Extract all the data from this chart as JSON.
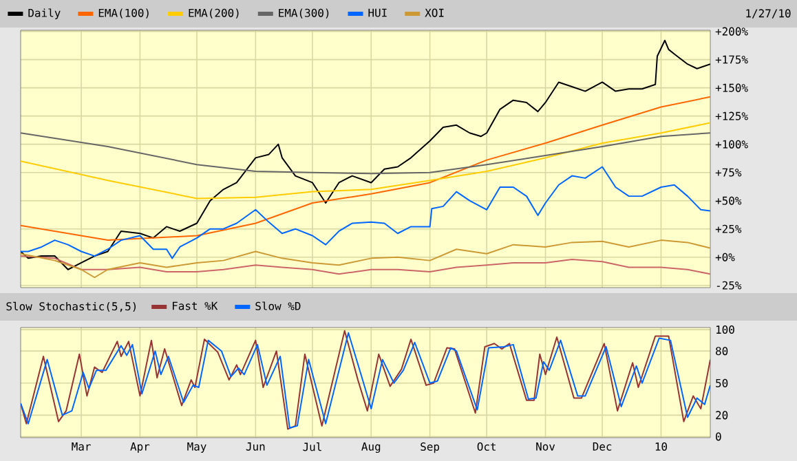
{
  "chart_data": [
    {
      "type": "line",
      "annotations": [
        "1/27/10"
      ],
      "legend": "top",
      "grid": true,
      "tick_labels": "y",
      "xlim": [
        "2009-01-28",
        "2010-01-27"
      ],
      "xticks": [
        {
          "value": "2009-03-01",
          "label": null
        },
        {
          "value": "2009-04-01",
          "label": null
        },
        {
          "value": "2009-05-01",
          "label": null
        },
        {
          "value": "2009-06-01",
          "label": null
        },
        {
          "value": "2009-07-01",
          "label": null
        },
        {
          "value": "2009-08-01",
          "label": null
        },
        {
          "value": "2009-09-01",
          "label": null
        },
        {
          "value": "2009-10-01",
          "label": null
        },
        {
          "value": "2009-11-01",
          "label": null
        },
        {
          "value": "2009-12-01",
          "label": null
        },
        {
          "value": "2010-01-01",
          "label": null
        }
      ],
      "ylim": [
        -27,
        201
      ],
      "yticks": [
        {
          "value": -25,
          "label": "-25%"
        },
        {
          "value": 0,
          "label": "+0%"
        },
        {
          "value": 25,
          "label": "+25%"
        },
        {
          "value": 50,
          "label": "+50%"
        },
        {
          "value": 75,
          "label": "+75%"
        },
        {
          "value": 100,
          "label": "+100%"
        },
        {
          "value": 125,
          "label": "+125%"
        },
        {
          "value": 150,
          "label": "+150%"
        },
        {
          "value": 175,
          "label": "+175%"
        },
        {
          "value": 200,
          "label": "+200%"
        }
      ],
      "series": [
        {
          "name": "Daily",
          "color": "#000000",
          "x": [
            "2009-01-28",
            "2009-02-01",
            "2009-02-08",
            "2009-02-15",
            "2009-02-22",
            "2009-03-01",
            "2009-03-08",
            "2009-03-15",
            "2009-03-22",
            "2009-04-01",
            "2009-04-08",
            "2009-04-15",
            "2009-04-22",
            "2009-05-01",
            "2009-05-08",
            "2009-05-15",
            "2009-05-22",
            "2009-06-01",
            "2009-06-08",
            "2009-06-13",
            "2009-06-15",
            "2009-06-22",
            "2009-07-01",
            "2009-07-08",
            "2009-07-15",
            "2009-07-22",
            "2009-08-01",
            "2009-08-08",
            "2009-08-15",
            "2009-08-22",
            "2009-09-01",
            "2009-09-08",
            "2009-09-15",
            "2009-09-22",
            "2009-09-28",
            "2009-10-01",
            "2009-10-08",
            "2009-10-15",
            "2009-10-22",
            "2009-10-28",
            "2009-11-01",
            "2009-11-08",
            "2009-11-15",
            "2009-11-22",
            "2009-12-01",
            "2009-12-08",
            "2009-12-15",
            "2009-12-22",
            "2009-12-29",
            "2009-12-30",
            "2010-01-03",
            "2010-01-05",
            "2010-01-08",
            "2010-01-15",
            "2010-01-20",
            "2010-01-27"
          ],
          "values": [
            5,
            -1,
            1,
            1,
            -11,
            -5,
            1,
            5,
            23,
            21,
            17,
            27,
            23,
            30,
            50,
            60,
            66,
            88,
            91,
            100,
            88,
            72,
            66,
            48,
            66,
            72,
            66,
            78,
            80,
            88,
            103,
            115,
            117,
            110,
            107,
            110,
            131,
            139,
            137,
            129,
            137,
            155,
            151,
            147,
            155,
            147,
            149,
            149,
            153,
            178,
            192,
            184,
            180,
            171,
            167,
            171
          ]
        },
        {
          "name": "EMA(100)",
          "color": "#ff6600",
          "x": [
            "2009-01-28",
            "2009-03-15",
            "2009-05-01",
            "2009-06-01",
            "2009-07-01",
            "2009-08-01",
            "2009-09-01",
            "2009-10-01",
            "2009-11-01",
            "2009-12-01",
            "2010-01-01",
            "2010-01-27"
          ],
          "values": [
            28,
            15,
            19,
            30,
            48,
            56,
            66,
            86,
            101,
            117,
            133,
            142
          ]
        },
        {
          "name": "EMA(200)",
          "color": "#ffcc00",
          "x": [
            "2009-01-28",
            "2009-03-15",
            "2009-05-01",
            "2009-06-01",
            "2009-07-01",
            "2009-08-01",
            "2009-09-01",
            "2009-10-01",
            "2009-11-01",
            "2009-12-01",
            "2010-01-01",
            "2010-01-27"
          ],
          "values": [
            85,
            68,
            52,
            53,
            58,
            60,
            68,
            76,
            88,
            101,
            110,
            119
          ]
        },
        {
          "name": "EMA(300)",
          "color": "#666666",
          "x": [
            "2009-01-28",
            "2009-03-15",
            "2009-05-01",
            "2009-06-01",
            "2009-07-01",
            "2009-08-01",
            "2009-09-01",
            "2009-10-01",
            "2009-11-01",
            "2009-12-01",
            "2010-01-01",
            "2010-01-27"
          ],
          "values": [
            110,
            98,
            82,
            76,
            75,
            74,
            75,
            82,
            90,
            98,
            107,
            110
          ]
        },
        {
          "color": "#cc6666",
          "x": [
            "2009-01-28",
            "2009-02-15",
            "2009-03-01",
            "2009-03-15",
            "2009-04-01",
            "2009-04-15",
            "2009-05-01",
            "2009-05-15",
            "2009-06-01",
            "2009-06-15",
            "2009-07-01",
            "2009-07-15",
            "2009-08-01",
            "2009-08-15",
            "2009-09-01",
            "2009-09-15",
            "2009-10-01",
            "2009-10-15",
            "2009-11-01",
            "2009-11-15",
            "2009-12-01",
            "2009-12-15",
            "2010-01-01",
            "2010-01-15",
            "2010-01-27"
          ],
          "values": [
            1,
            -1,
            -11,
            -11,
            -9,
            -13,
            -13,
            -11,
            -7,
            -9,
            -11,
            -15,
            -11,
            -11,
            -13,
            -9,
            -7,
            -5,
            -5,
            -2,
            -4,
            -9,
            -9,
            -11,
            -15
          ]
        },
        {
          "name": "HUI",
          "color": "#0066ff",
          "x": [
            "2009-01-28",
            "2009-02-01",
            "2009-02-08",
            "2009-02-15",
            "2009-02-22",
            "2009-03-01",
            "2009-03-08",
            "2009-03-15",
            "2009-03-22",
            "2009-04-01",
            "2009-04-08",
            "2009-04-15",
            "2009-04-18",
            "2009-04-22",
            "2009-05-01",
            "2009-05-08",
            "2009-05-15",
            "2009-05-22",
            "2009-06-01",
            "2009-06-08",
            "2009-06-15",
            "2009-06-22",
            "2009-07-01",
            "2009-07-08",
            "2009-07-15",
            "2009-07-22",
            "2009-08-01",
            "2009-08-08",
            "2009-08-15",
            "2009-08-22",
            "2009-09-01",
            "2009-09-02",
            "2009-09-08",
            "2009-09-15",
            "2009-09-22",
            "2009-10-01",
            "2009-10-08",
            "2009-10-15",
            "2009-10-22",
            "2009-10-28",
            "2009-11-01",
            "2009-11-08",
            "2009-11-15",
            "2009-11-22",
            "2009-12-01",
            "2009-12-08",
            "2009-12-15",
            "2009-12-22",
            "2010-01-01",
            "2010-01-08",
            "2010-01-15",
            "2010-01-22",
            "2010-01-27"
          ],
          "values": [
            5,
            5,
            9,
            15,
            11,
            5,
            1,
            7,
            15,
            19,
            7,
            7,
            -1,
            9,
            17,
            25,
            25,
            30,
            42,
            31,
            21,
            25,
            19,
            11,
            23,
            30,
            31,
            30,
            21,
            27,
            27,
            43,
            45,
            58,
            50,
            42,
            62,
            62,
            54,
            37,
            48,
            64,
            72,
            70,
            80,
            62,
            54,
            54,
            62,
            64,
            54,
            42,
            41
          ]
        },
        {
          "name": "XOI",
          "color": "#cc9933",
          "x": [
            "2009-01-28",
            "2009-02-15",
            "2009-03-01",
            "2009-03-08",
            "2009-03-15",
            "2009-04-01",
            "2009-04-15",
            "2009-05-01",
            "2009-05-15",
            "2009-06-01",
            "2009-06-15",
            "2009-07-01",
            "2009-07-15",
            "2009-08-01",
            "2009-08-15",
            "2009-09-01",
            "2009-09-15",
            "2009-10-01",
            "2009-10-15",
            "2009-11-01",
            "2009-11-15",
            "2009-12-01",
            "2009-12-15",
            "2010-01-01",
            "2010-01-15",
            "2010-01-27"
          ],
          "values": [
            3,
            -3,
            -11,
            -18,
            -11,
            -5,
            -9,
            -5,
            -3,
            5,
            -1,
            -5,
            -7,
            -1,
            0,
            -3,
            7,
            3,
            11,
            9,
            13,
            14,
            9,
            15,
            13,
            8
          ]
        }
      ]
    },
    {
      "type": "line",
      "title": "Slow Stochastic(5,5)",
      "legend": "top",
      "grid": true,
      "xlim": [
        "2009-01-28",
        "2010-01-27"
      ],
      "xticks": [
        {
          "value": "2009-03-01",
          "label": "Mar"
        },
        {
          "value": "2009-04-01",
          "label": "Apr"
        },
        {
          "value": "2009-05-01",
          "label": "May"
        },
        {
          "value": "2009-06-01",
          "label": "Jun"
        },
        {
          "value": "2009-07-01",
          "label": "Jul"
        },
        {
          "value": "2009-08-01",
          "label": "Aug"
        },
        {
          "value": "2009-09-01",
          "label": "Sep"
        },
        {
          "value": "2009-10-01",
          "label": "Oct"
        },
        {
          "value": "2009-11-01",
          "label": "Nov"
        },
        {
          "value": "2009-12-01",
          "label": "Dec"
        },
        {
          "value": "2010-01-01",
          "label": "10"
        }
      ],
      "ylim": [
        -1,
        102
      ],
      "yticks": [
        0,
        20,
        50,
        80,
        100
      ],
      "series": [
        {
          "name": "Fast %K",
          "color": "#993333",
          "x": [
            "2009-01-28",
            "2009-01-31",
            "2009-02-09",
            "2009-02-17",
            "2009-02-21",
            "2009-02-28",
            "2009-03-04",
            "2009-03-08",
            "2009-03-12",
            "2009-03-20",
            "2009-03-22",
            "2009-03-26",
            "2009-04-01",
            "2009-04-07",
            "2009-04-10",
            "2009-04-14",
            "2009-04-23",
            "2009-04-28",
            "2009-04-30",
            "2009-05-05",
            "2009-05-12",
            "2009-05-18",
            "2009-05-22",
            "2009-05-24",
            "2009-06-01",
            "2009-06-05",
            "2009-06-12",
            "2009-06-18",
            "2009-06-22",
            "2009-06-27",
            "2009-07-06",
            "2009-07-18",
            "2009-07-25",
            "2009-07-30",
            "2009-08-05",
            "2009-08-11",
            "2009-08-17",
            "2009-08-22",
            "2009-08-30",
            "2009-09-03",
            "2009-09-10",
            "2009-09-14",
            "2009-09-25",
            "2009-09-30",
            "2009-10-05",
            "2009-10-09",
            "2009-10-13",
            "2009-10-22",
            "2009-10-26",
            "2009-10-29",
            "2009-11-01",
            "2009-11-07",
            "2009-11-16",
            "2009-11-20",
            "2009-12-02",
            "2009-12-09",
            "2009-12-17",
            "2009-12-20",
            "2009-12-29",
            "2010-01-05",
            "2010-01-13",
            "2010-01-18",
            "2010-01-22",
            "2010-01-27"
          ],
          "values": [
            31,
            12,
            75,
            14,
            24,
            77,
            38,
            65,
            60,
            89,
            75,
            89,
            38,
            90,
            55,
            82,
            29,
            53,
            46,
            91,
            79,
            53,
            67,
            58,
            90,
            46,
            80,
            7,
            10,
            77,
            10,
            99,
            53,
            24,
            77,
            47,
            63,
            91,
            48,
            50,
            83,
            82,
            22,
            84,
            87,
            82,
            87,
            34,
            34,
            77,
            58,
            93,
            36,
            36,
            87,
            24,
            69,
            46,
            94,
            94,
            14,
            38,
            26,
            72
          ]
        },
        {
          "name": "Slow %D",
          "color": "#0066ff",
          "x": [
            "2009-01-28",
            "2009-02-01",
            "2009-02-11",
            "2009-02-19",
            "2009-02-24",
            "2009-03-02",
            "2009-03-05",
            "2009-03-09",
            "2009-03-14",
            "2009-03-22",
            "2009-03-25",
            "2009-03-28",
            "2009-04-02",
            "2009-04-09",
            "2009-04-12",
            "2009-04-16",
            "2009-04-24",
            "2009-04-29",
            "2009-05-02",
            "2009-05-07",
            "2009-05-14",
            "2009-05-19",
            "2009-05-23",
            "2009-05-26",
            "2009-06-02",
            "2009-06-07",
            "2009-06-14",
            "2009-06-19",
            "2009-06-23",
            "2009-06-29",
            "2009-07-08",
            "2009-07-20",
            "2009-07-27",
            "2009-08-01",
            "2009-08-07",
            "2009-08-13",
            "2009-08-18",
            "2009-08-24",
            "2009-09-01",
            "2009-09-05",
            "2009-09-12",
            "2009-09-15",
            "2009-09-26",
            "2009-10-02",
            "2009-10-10",
            "2009-10-15",
            "2009-10-23",
            "2009-10-27",
            "2009-10-31",
            "2009-11-03",
            "2009-11-09",
            "2009-11-18",
            "2009-11-22",
            "2009-12-03",
            "2009-12-11",
            "2009-12-19",
            "2009-12-22",
            "2009-12-31",
            "2010-01-06",
            "2010-01-15",
            "2010-01-20",
            "2010-01-24",
            "2010-01-27"
          ],
          "values": [
            31,
            12,
            72,
            20,
            24,
            60,
            45,
            62,
            62,
            85,
            76,
            86,
            40,
            80,
            58,
            75,
            32,
            48,
            46,
            90,
            80,
            56,
            64,
            58,
            86,
            48,
            75,
            8,
            10,
            72,
            12,
            97,
            56,
            26,
            72,
            50,
            62,
            88,
            50,
            52,
            83,
            80,
            25,
            83,
            84,
            86,
            35,
            36,
            70,
            62,
            90,
            38,
            38,
            84,
            28,
            66,
            50,
            92,
            90,
            18,
            36,
            30,
            48
          ]
        }
      ]
    }
  ]
}
